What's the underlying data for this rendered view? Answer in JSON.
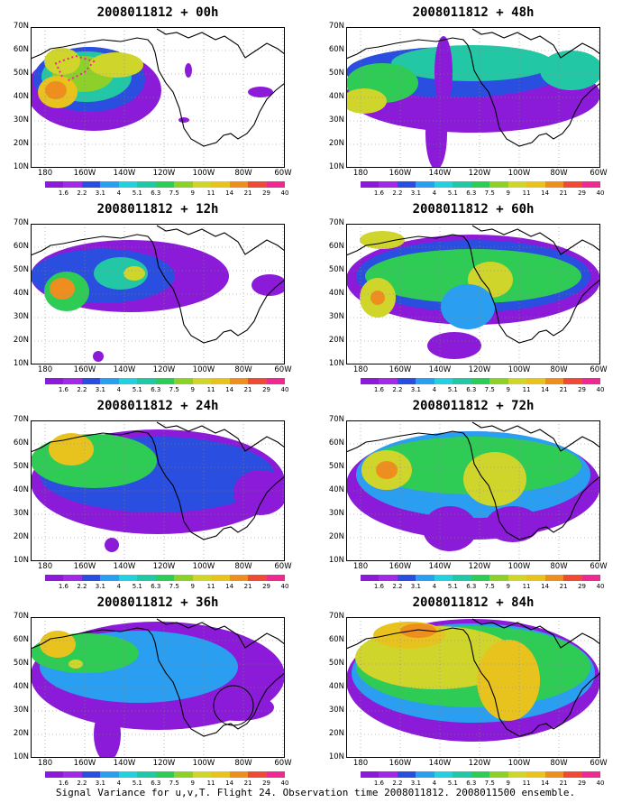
{
  "footer": "Signal Variance for u,v,T. Flight 24. Observation time 2008011812. 2008011500 ensemble.",
  "y_labels": [
    "70N",
    "60N",
    "50N",
    "40N",
    "30N",
    "20N",
    "10N"
  ],
  "x_labels": [
    "180",
    "160W",
    "140W",
    "120W",
    "100W",
    "80W",
    "60W"
  ],
  "colorbar": {
    "labels": [
      "1.6",
      "2.2",
      "3.1",
      "4",
      "5.1",
      "6.3",
      "7.5",
      "9",
      "11",
      "14",
      "21",
      "29",
      "40"
    ],
    "colors": [
      "#8c1ad9",
      "#a02ae6",
      "#2a4fe0",
      "#2a9ef0",
      "#24cfe0",
      "#22c7a6",
      "#2ecc55",
      "#8ed02a",
      "#cfd52a",
      "#e8c31e",
      "#ee8e1f",
      "#ef4a36",
      "#ee2a90"
    ]
  },
  "panels": [
    {
      "id": "p00",
      "title": "2008011812 + 00h"
    },
    {
      "id": "p48",
      "title": "2008011812 + 48h"
    },
    {
      "id": "p12",
      "title": "2008011812 + 12h"
    },
    {
      "id": "p60",
      "title": "2008011812 + 60h"
    },
    {
      "id": "p24",
      "title": "2008011812 + 24h"
    },
    {
      "id": "p72",
      "title": "2008011812 + 72h"
    },
    {
      "id": "p36",
      "title": "2008011812 + 36h"
    },
    {
      "id": "p84",
      "title": "2008011812 + 84h"
    }
  ]
}
